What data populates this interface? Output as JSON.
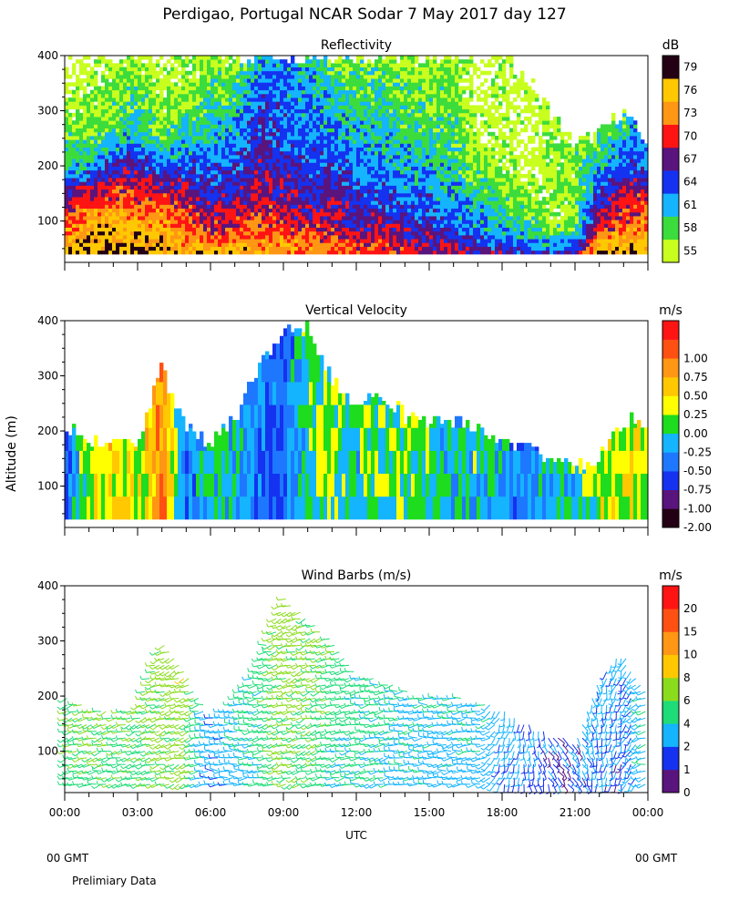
{
  "title": "Perdigao, Portugal  NCAR Sodar   7 May 2017  day 127",
  "footer": {
    "left_gmt": "00 GMT",
    "right_gmt": "00 GMT",
    "note": "Prelimiary Data"
  },
  "y_axis_label": "Altitude (m)",
  "x_axis_label": "UTC",
  "colors": {
    "reflectivity": [
      "#c8ff1e",
      "#3cdc3c",
      "#14b4ff",
      "#1432f0",
      "#5a147d",
      "#ff1414",
      "#ff9614",
      "#ffc800",
      "#230014"
    ],
    "velocity": [
      "#230014",
      "#5a147d",
      "#1432f0",
      "#1e78ff",
      "#14b4ff",
      "#1edc1e",
      "#ffff00",
      "#ffc800",
      "#ff9614",
      "#ff5014",
      "#ff1414"
    ],
    "wind": [
      "#5a147d",
      "#1432f0",
      "#14b4ff",
      "#1edc78",
      "#8cdc1e",
      "#ffc800",
      "#ff9614",
      "#ff5014",
      "#ff1414"
    ]
  },
  "chart_data": [
    {
      "type": "heatmap",
      "title": "Reflectivity",
      "units": "dB",
      "xlabel": "",
      "ylabel": "Altitude (m)",
      "xlim": [
        0,
        24
      ],
      "ylim": [
        25,
        400
      ],
      "yticks": [
        "100",
        "200",
        "300",
        "400"
      ],
      "colorbar_ticks": [
        "55",
        "58",
        "61",
        "64",
        "67",
        "70",
        "73",
        "76",
        "79"
      ],
      "levels": [
        55,
        58,
        61,
        64,
        67,
        70,
        73,
        76,
        79
      ],
      "range_min": 40,
      "hours": [
        0,
        1,
        2,
        3,
        4,
        5,
        6,
        7,
        8,
        9,
        10,
        11,
        12,
        13,
        14,
        15,
        16,
        17,
        18,
        19,
        20,
        21,
        22,
        23,
        24
      ],
      "top": [
        400,
        400,
        400,
        400,
        400,
        400,
        400,
        400,
        400,
        400,
        400,
        400,
        400,
        400,
        400,
        400,
        400,
        400,
        400,
        360,
        300,
        240,
        260,
        300,
        240
      ],
      "profiles": [
        [
          [
            40,
            80
          ],
          [
            80,
            74
          ],
          [
            120,
            70
          ],
          [
            160,
            66
          ],
          [
            200,
            60
          ],
          [
            400,
            55
          ]
        ],
        [
          [
            40,
            79
          ],
          [
            90,
            77
          ],
          [
            140,
            72
          ],
          [
            200,
            63
          ],
          [
            260,
            58
          ],
          [
            400,
            55
          ]
        ],
        [
          [
            40,
            79
          ],
          [
            100,
            76
          ],
          [
            170,
            70
          ],
          [
            220,
            64
          ],
          [
            280,
            59
          ],
          [
            400,
            56
          ]
        ],
        [
          [
            40,
            79
          ],
          [
            90,
            76
          ],
          [
            150,
            71
          ],
          [
            200,
            68
          ],
          [
            250,
            62
          ],
          [
            400,
            57
          ]
        ],
        [
          [
            40,
            79
          ],
          [
            80,
            76
          ],
          [
            140,
            72
          ],
          [
            200,
            64
          ],
          [
            260,
            58
          ],
          [
            400,
            55
          ]
        ],
        [
          [
            40,
            77
          ],
          [
            70,
            74
          ],
          [
            140,
            70
          ],
          [
            230,
            63
          ],
          [
            330,
            58
          ],
          [
            400,
            56
          ]
        ],
        [
          [
            40,
            77
          ],
          [
            80,
            71
          ],
          [
            180,
            65
          ],
          [
            300,
            60
          ],
          [
            400,
            58
          ]
        ],
        [
          [
            40,
            79
          ],
          [
            70,
            73
          ],
          [
            150,
            68
          ],
          [
            280,
            62
          ],
          [
            400,
            57
          ]
        ],
        [
          [
            40,
            76
          ],
          [
            100,
            72
          ],
          [
            200,
            68
          ],
          [
            300,
            66
          ],
          [
            400,
            62
          ]
        ],
        [
          [
            40,
            76
          ],
          [
            110,
            70
          ],
          [
            250,
            65
          ],
          [
            400,
            63
          ]
        ],
        [
          [
            40,
            75
          ],
          [
            120,
            68
          ],
          [
            250,
            64
          ],
          [
            400,
            62
          ]
        ],
        [
          [
            40,
            74
          ],
          [
            100,
            70
          ],
          [
            200,
            66
          ],
          [
            320,
            62
          ],
          [
            400,
            59
          ]
        ],
        [
          [
            40,
            73
          ],
          [
            100,
            68
          ],
          [
            220,
            63
          ],
          [
            400,
            58
          ]
        ],
        [
          [
            40,
            73
          ],
          [
            130,
            66
          ],
          [
            260,
            62
          ],
          [
            400,
            58
          ]
        ],
        [
          [
            40,
            71
          ],
          [
            120,
            65
          ],
          [
            250,
            61
          ],
          [
            400,
            57
          ]
        ],
        [
          [
            40,
            70
          ],
          [
            110,
            66
          ],
          [
            220,
            61
          ],
          [
            400,
            57
          ]
        ],
        [
          [
            40,
            70
          ],
          [
            100,
            64
          ],
          [
            200,
            61
          ],
          [
            400,
            57
          ]
        ],
        [
          [
            40,
            68
          ],
          [
            90,
            63
          ],
          [
            180,
            59
          ],
          [
            280,
            55
          ]
        ],
        [
          [
            40,
            68
          ],
          [
            80,
            63
          ],
          [
            150,
            59
          ],
          [
            250,
            56
          ]
        ],
        [
          [
            40,
            67
          ],
          [
            70,
            62
          ],
          [
            130,
            58
          ],
          [
            200,
            55
          ]
        ],
        [
          [
            40,
            66
          ],
          [
            70,
            61
          ],
          [
            100,
            57
          ]
        ],
        [
          [
            40,
            68
          ],
          [
            70,
            62
          ],
          [
            100,
            58
          ]
        ],
        [
          [
            40,
            79
          ],
          [
            80,
            72
          ],
          [
            140,
            67
          ],
          [
            200,
            62
          ],
          [
            260,
            58
          ]
        ],
        [
          [
            40,
            79
          ],
          [
            90,
            73
          ],
          [
            150,
            70
          ],
          [
            200,
            66
          ],
          [
            300,
            58
          ]
        ],
        [
          [
            40,
            79
          ],
          [
            90,
            75
          ],
          [
            150,
            70
          ],
          [
            200,
            64
          ]
        ]
      ]
    },
    {
      "type": "heatmap",
      "title": "Vertical Velocity",
      "units": "m/s",
      "xlabel": "",
      "ylabel": "Altitude (m)",
      "xlim": [
        0,
        24
      ],
      "ylim": [
        25,
        400
      ],
      "yticks": [
        "100",
        "200",
        "300",
        "400"
      ],
      "colorbar_ticks": [
        "-2.00",
        "-1.00",
        "-0.75",
        "-0.50",
        "-0.25",
        "0.00",
        "0.25",
        "0.50",
        "0.75",
        "1.00"
      ],
      "levels": [
        -2.0,
        -1.0,
        -0.75,
        -0.5,
        -0.25,
        0.0,
        0.25,
        0.5,
        0.75,
        1.0
      ],
      "range_min": 40,
      "hours": [
        0,
        1,
        2,
        3,
        4,
        5,
        6,
        7,
        8,
        9,
        10,
        11,
        12,
        13,
        14,
        15,
        16,
        17,
        18,
        19,
        20,
        21,
        22,
        23,
        24
      ],
      "top": [
        210,
        180,
        180,
        180,
        310,
        210,
        180,
        220,
        320,
        380,
        390,
        300,
        250,
        270,
        230,
        220,
        220,
        210,
        180,
        170,
        150,
        140,
        150,
        220,
        210
      ],
      "values": [
        -0.5,
        0.3,
        0.5,
        0.3,
        0.9,
        -0.4,
        0.0,
        -0.15,
        -0.35,
        -0.45,
        0.1,
        0.2,
        0.0,
        0.1,
        0.2,
        0.0,
        -0.1,
        0.0,
        -0.15,
        -0.5,
        -0.1,
        0.0,
        0.3,
        0.4,
        0.1
      ]
    },
    {
      "type": "scatter",
      "title": "Wind Barbs (m/s)",
      "units": "m/s",
      "xlabel": "UTC",
      "ylabel": "Altitude (m)",
      "xlim": [
        0,
        24
      ],
      "ylim": [
        25,
        400
      ],
      "yticks": [
        "100",
        "200",
        "300",
        "400"
      ],
      "xticks": [
        "00:00",
        "03:00",
        "06:00",
        "09:00",
        "12:00",
        "15:00",
        "18:00",
        "21:00",
        "00:00"
      ],
      "colorbar_ticks": [
        "0",
        "1",
        "2",
        "4",
        "6",
        "8",
        "10",
        "15",
        "20"
      ],
      "levels": [
        0,
        1,
        2,
        4,
        6,
        8,
        10,
        15,
        20
      ],
      "range_min": 40,
      "hours": [
        0,
        1,
        2,
        3,
        4,
        5,
        6,
        7,
        8,
        9,
        10,
        11,
        12,
        13,
        14,
        15,
        16,
        17,
        18,
        19,
        20,
        21,
        22,
        23,
        24
      ],
      "top": [
        200,
        180,
        170,
        180,
        300,
        240,
        160,
        190,
        260,
        380,
        340,
        300,
        240,
        230,
        210,
        200,
        200,
        190,
        180,
        150,
        130,
        120,
        240,
        280,
        200
      ],
      "speed": [
        4.5,
        5.0,
        5.0,
        4.5,
        5.5,
        6.0,
        1.5,
        2.5,
        3.5,
        5.5,
        5.0,
        4.0,
        3.5,
        3.5,
        3.0,
        2.5,
        2.5,
        2.5,
        2.0,
        1.5,
        0.5,
        1.0,
        1.5,
        1.0,
        3.0
      ],
      "direction": [
        250,
        255,
        255,
        250,
        250,
        245,
        270,
        270,
        260,
        250,
        250,
        255,
        260,
        260,
        265,
        265,
        260,
        265,
        200,
        180,
        150,
        140,
        180,
        200,
        260
      ]
    }
  ]
}
